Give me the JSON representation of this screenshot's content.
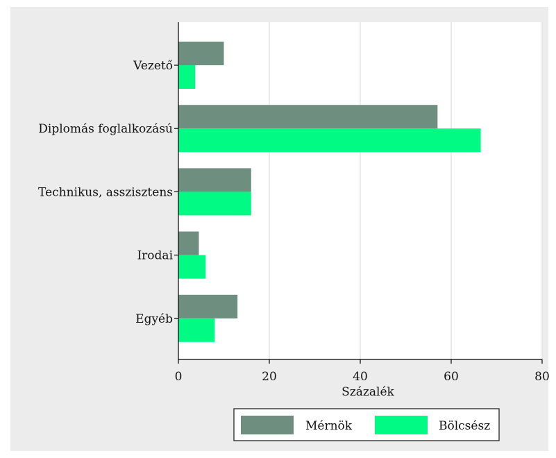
{
  "chart_data": {
    "type": "bar",
    "orientation": "horizontal",
    "categories": [
      "Vezető",
      "Diplomás foglalkozású",
      "Technikus, asszisztens",
      "Irodai",
      "Egyéb"
    ],
    "series": [
      {
        "name": "Mérnök",
        "values": [
          10,
          57,
          16,
          4.5,
          13
        ],
        "color": "#6e8f80"
      },
      {
        "name": "Bölcsész",
        "values": [
          3.7,
          66.5,
          16,
          6,
          8
        ],
        "color": "#00fa84"
      }
    ],
    "xlabel": "Százalék",
    "xlim": [
      0,
      80
    ],
    "xticks": [
      0,
      20,
      40,
      60,
      80
    ],
    "grid": true,
    "legend": "bottom"
  },
  "colors": {
    "background": "#ececec",
    "plot_background": "#ffffff",
    "grid": "#e4e4e4",
    "axis": "#000000"
  }
}
